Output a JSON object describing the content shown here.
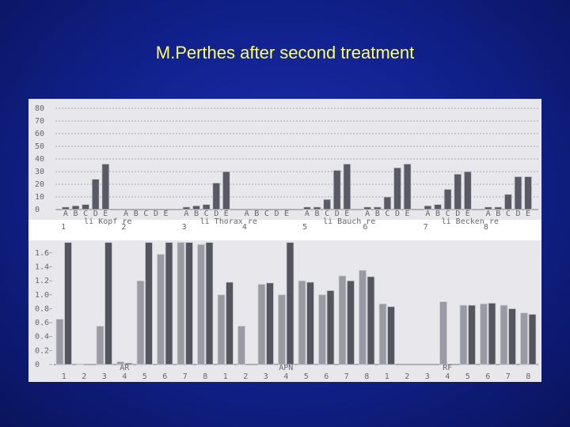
{
  "title": "M.Perthes after second treatment",
  "chart_data": [
    {
      "type": "bar",
      "categories": [
        "1",
        "2",
        "3",
        "4",
        "5",
        "6",
        "7",
        "8"
      ],
      "section_labels": [
        "li Kopf re",
        "li Thorax re",
        "li Bauch re",
        "li Becken re"
      ],
      "series": [
        {
          "name": "A",
          "color": "#5a5a66",
          "values": [
            2,
            0,
            2,
            0,
            2,
            2,
            3,
            2
          ]
        },
        {
          "name": "B",
          "color": "#5a5a66",
          "values": [
            3,
            0,
            3,
            0,
            2,
            2,
            4,
            2
          ]
        },
        {
          "name": "C",
          "color": "#5a5a66",
          "values": [
            4,
            0,
            4,
            0,
            8,
            10,
            16,
            12
          ]
        },
        {
          "name": "D",
          "color": "#5a5a66",
          "values": [
            24,
            0,
            21,
            0,
            31,
            33,
            28,
            26
          ]
        },
        {
          "name": "E",
          "color": "#5a5a66",
          "values": [
            36,
            0,
            30,
            0,
            36,
            36,
            30,
            26
          ]
        }
      ],
      "ylim": [
        0,
        80
      ],
      "yticks": [
        0,
        10,
        20,
        30,
        40,
        50,
        60,
        70,
        80
      ],
      "grid": true
    },
    {
      "type": "bar",
      "categories": [
        "1",
        "2",
        "3",
        "4",
        "5",
        "6",
        "7",
        "8",
        "1",
        "2",
        "3",
        "4",
        "5",
        "6",
        "7",
        "8",
        "1",
        "2",
        "3",
        "4",
        "5",
        "6",
        "7",
        "8"
      ],
      "section_labels": [
        "AR",
        "APN",
        "RF"
      ],
      "series": [
        {
          "color": "#9a9aa4",
          "values": [
            0.65,
            0.01,
            0.55,
            0.04,
            1.2,
            1.58,
            1.75,
            1.72,
            1.0,
            0.55,
            1.15,
            1.0,
            1.2,
            1.0,
            1.27,
            1.35,
            0.87,
            0,
            0,
            0.9,
            0.85,
            0.87,
            0.85,
            0.74
          ]
        },
        {
          "color": "#55555f",
          "values": [
            1.75,
            0,
            1.75,
            0.02,
            1.75,
            1.75,
            1.75,
            1.75,
            1.18,
            0,
            1.17,
            1.75,
            1.18,
            1.06,
            1.2,
            1.26,
            0.83,
            0,
            0,
            0,
            0.85,
            0.88,
            0.8,
            0.72
          ]
        }
      ],
      "ylim": [
        0,
        1.7
      ],
      "yticks": [
        0,
        0.2,
        0.4,
        0.6,
        0.8,
        {
          "value": 1,
          "label": "1.0"
        },
        1.2,
        1.4,
        1.6
      ],
      "grid": false
    }
  ]
}
